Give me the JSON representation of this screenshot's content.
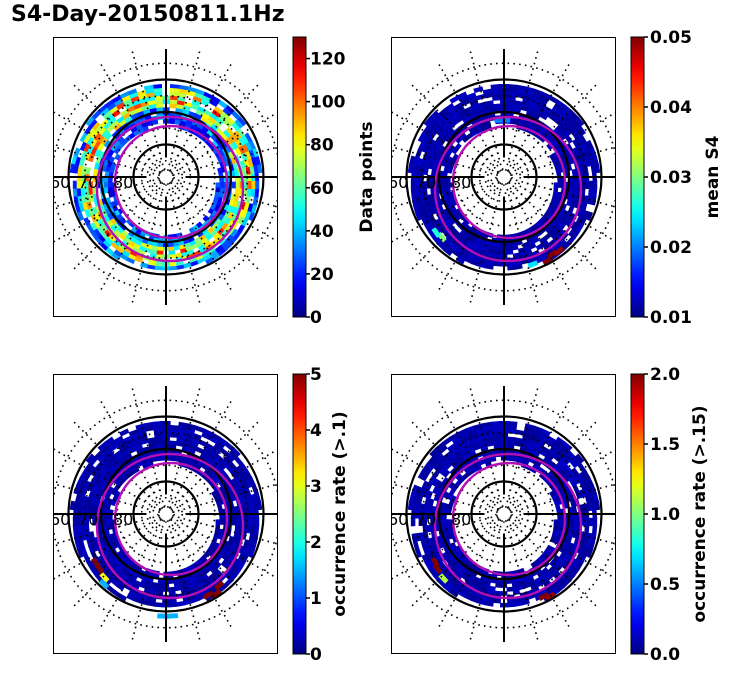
{
  "title": "S4-Day-20150811.1Hz",
  "colors": {
    "oval": "#b30fb3",
    "grid": "#000000",
    "frame": "#000000"
  },
  "chart_data": [
    {
      "type": "heatmap",
      "projection": "polar (magnetic latitude / local time)",
      "panel": "top-left",
      "title": "",
      "lat_labels": [
        "60",
        "70",
        "80"
      ],
      "solid_circles_lat": [
        60,
        70,
        80
      ],
      "colorbar": {
        "label": "Data points",
        "range": [
          0,
          130
        ],
        "ticks": [
          "0",
          "20",
          "40",
          "60",
          "80",
          "100",
          "120"
        ],
        "tick_values": [
          0,
          20,
          40,
          60,
          80,
          100,
          120
        ],
        "cmap": "jet"
      },
      "description": "Ring of bins between ~60 and ~75 deg lat; mostly blue/cyan (20-60) with green/yellow/orange streaks (80-110) along the 65-70 deg band"
    },
    {
      "type": "heatmap",
      "projection": "polar (magnetic latitude / local time)",
      "panel": "top-right",
      "title": "",
      "lat_labels": [
        "60",
        "70",
        "80"
      ],
      "solid_circles_lat": [
        60,
        70,
        80
      ],
      "colorbar": {
        "label": "mean S4",
        "range": [
          0.01,
          0.05
        ],
        "ticks": [
          "0.01",
          "0.02",
          "0.03",
          "0.04",
          "0.05"
        ],
        "tick_values": [
          0.01,
          0.02,
          0.03,
          0.04,
          0.05
        ],
        "cmap": "jet"
      },
      "description": "Mostly dark blue (~0.01); dark red patches (~0.05) near the bottom (post-midnight) at ~65 deg; cyan patch lower-left"
    },
    {
      "type": "heatmap",
      "projection": "polar (magnetic latitude / local time)",
      "panel": "bottom-left",
      "title": "",
      "lat_labels": [
        "60",
        "70",
        "80"
      ],
      "solid_circles_lat": [
        60,
        70,
        80
      ],
      "colorbar": {
        "label": "occurrence rate (>.1)",
        "range": [
          0,
          5
        ],
        "ticks": [
          "0",
          "1",
          "2",
          "3",
          "4",
          "5"
        ],
        "tick_values": [
          0,
          1,
          2,
          3,
          4,
          5
        ],
        "cmap": "jet"
      },
      "description": "Mostly dark blue (0); dark red patches (~5) lower-left and lower-right; yellow (~3) and light blue (~1.5) patches"
    },
    {
      "type": "heatmap",
      "projection": "polar (magnetic latitude / local time)",
      "panel": "bottom-right",
      "title": "",
      "lat_labels": [
        "60",
        "70",
        "80"
      ],
      "solid_circles_lat": [
        60,
        70,
        80
      ],
      "colorbar": {
        "label": "occurrence rate (>.15)",
        "range": [
          0.0,
          2.0
        ],
        "ticks": [
          "0.0",
          "0.5",
          "1.0",
          "1.5",
          "2.0"
        ],
        "tick_values": [
          0.0,
          0.5,
          1.0,
          1.5,
          2.0
        ],
        "cmap": "jet"
      },
      "description": "Mostly dark blue (0); dark red patches (~2) lower-left and small ones near bottom; light green patch (~1.1) lower-left"
    }
  ]
}
